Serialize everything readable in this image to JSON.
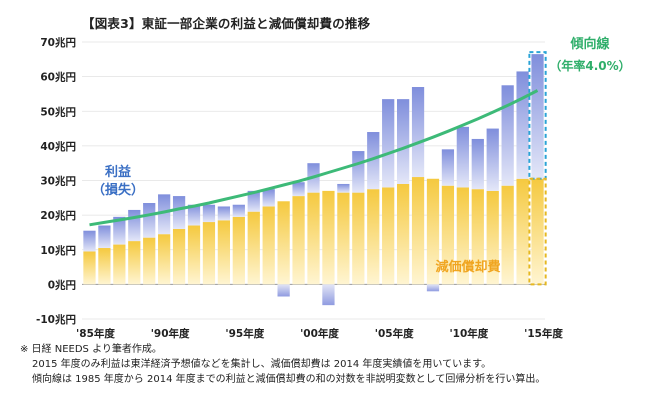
{
  "title": "【図表3】東証一部企業の利益と減価償却費の推移",
  "notes": [
    "※ 日経 NEEDS より筆者作成。",
    "2015 年度のみ利益は東洋経済予想値などを集計し、減価償却費は 2014 年度実績値を用いています。",
    "傾向線は 1985 年度から 2014 年度までの利益と減価償却費の和の対数を非説明変数として回帰分析を行い算出。"
  ],
  "chart_data": {
    "type": "bar",
    "stacked": true,
    "unit": "兆円",
    "ylim": [
      -10,
      70
    ],
    "yticks": [
      70,
      60,
      50,
      40,
      30,
      20,
      10,
      0,
      -10
    ],
    "ytick_labels": [
      "70兆円",
      "60兆円",
      "50兆円",
      "40兆円",
      "30兆円",
      "20兆円",
      "10兆円",
      "0兆円",
      "-10兆円"
    ],
    "categories": [
      "1985",
      "1986",
      "1987",
      "1988",
      "1989",
      "1990",
      "1991",
      "1992",
      "1993",
      "1994",
      "1995",
      "1996",
      "1997",
      "1998",
      "1999",
      "2000",
      "2001",
      "2002",
      "2003",
      "2004",
      "2005",
      "2006",
      "2007",
      "2008",
      "2009",
      "2010",
      "2011",
      "2012",
      "2013",
      "2014",
      "2015"
    ],
    "xtick_labels": [
      {
        "year": "1985",
        "label": "'85年度"
      },
      {
        "year": "1990",
        "label": "'90年度"
      },
      {
        "year": "1995",
        "label": "'95年度"
      },
      {
        "year": "2000",
        "label": "'00年度"
      },
      {
        "year": "2005",
        "label": "'05年度"
      },
      {
        "year": "2010",
        "label": "'10年度"
      },
      {
        "year": "2015",
        "label": "'15年度"
      }
    ],
    "series": [
      {
        "name": "減価償却費",
        "color": "#f7d36a",
        "values": [
          9.5,
          10.5,
          11.5,
          12.5,
          13.5,
          14.5,
          16,
          17,
          18,
          18.5,
          19.5,
          21,
          22.5,
          24,
          25.5,
          26.5,
          27,
          26.5,
          26.5,
          27.5,
          28,
          29,
          31,
          30.5,
          28.5,
          28,
          27.5,
          27,
          28.5,
          30.5,
          30.5
        ]
      },
      {
        "name": "利益（損失）",
        "color": "#8f9be0",
        "values": [
          6,
          6.5,
          8,
          9,
          10,
          11.5,
          9.5,
          6,
          5,
          4,
          3.5,
          6,
          5,
          -3.5,
          4,
          8.5,
          -6,
          2.5,
          12,
          16.5,
          25.5,
          24.5,
          26,
          -2,
          10.5,
          17.5,
          14.5,
          18,
          29,
          31,
          36
        ]
      }
    ],
    "trend": {
      "name": "傾向線",
      "rate_label": "（年率4.0%）",
      "color": "#3dba78",
      "values": [
        17.2,
        17.9,
        18.6,
        19.3,
        20.1,
        20.9,
        21.8,
        22.6,
        23.5,
        24.5,
        25.5,
        26.5,
        27.6,
        28.7,
        29.8,
        31.0,
        32.3,
        33.6,
        34.9,
        36.3,
        37.8,
        39.3,
        40.9,
        42.5,
        44.2,
        46.0,
        47.8,
        49.7,
        51.7,
        53.8,
        56.0
      ]
    },
    "labels": {
      "profit_line1": "利益",
      "profit_line2": "（損失）",
      "depreciation": "減価償却費",
      "trend": "傾向線",
      "trend_rate": "（年率4.0%）"
    },
    "highlight": {
      "category": "2015",
      "style": "dashed-outline"
    }
  }
}
